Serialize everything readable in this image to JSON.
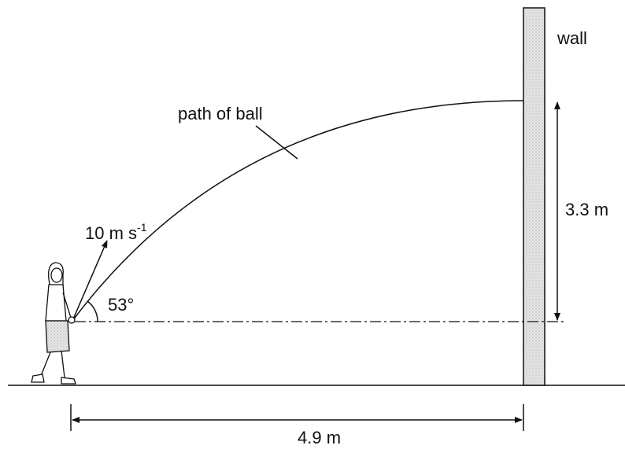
{
  "labels": {
    "wall": "wall",
    "path": "path of ball",
    "height": "3.3 m",
    "velocity": {
      "text": "10 m s",
      "superscript": "-1"
    },
    "angle": "53°",
    "distance": "4.9 m"
  }
}
